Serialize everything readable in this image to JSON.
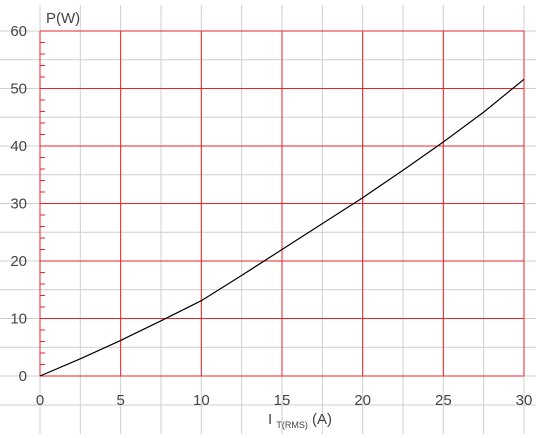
{
  "chart_data": {
    "type": "line",
    "ylabel": "P(W)",
    "xlabel": {
      "main": "I",
      "subscript": "T(RMS)",
      "unit": "(A)"
    },
    "xlim": [
      0,
      30
    ],
    "ylim": [
      0,
      60
    ],
    "x_ticks": [
      0,
      5,
      10,
      15,
      20,
      25,
      30
    ],
    "y_ticks": [
      0,
      10,
      20,
      30,
      40,
      50,
      60
    ],
    "grid": true,
    "series": [
      {
        "x": [
          0,
          2.5,
          5,
          7.5,
          10,
          12.5,
          15,
          17.5,
          20,
          22.5,
          25,
          27.5,
          30
        ],
        "y": [
          0,
          3,
          6.2,
          9.6,
          13.1,
          17.5,
          22,
          26.5,
          31,
          35.8,
          40.7,
          45.9,
          51.6
        ],
        "color": "#000000"
      }
    ],
    "colors": {
      "major_grid": "#e8232a",
      "minor_grid": "#cfcfcf",
      "text": "#444444"
    }
  }
}
